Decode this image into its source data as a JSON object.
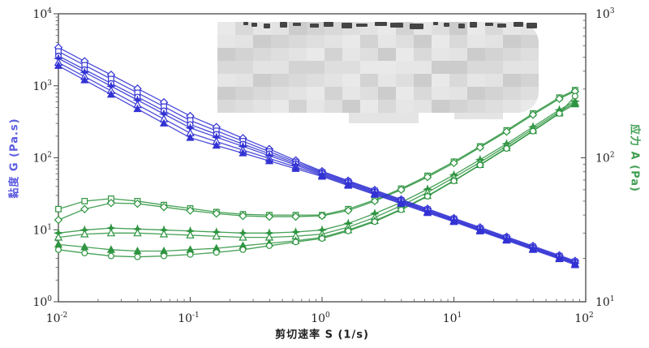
{
  "figure": {
    "x_axis": {
      "label": "剪切速率 S (1/s)",
      "scale": "log",
      "ticks": [
        "10^-2",
        "10^-1",
        "10^0",
        "10^1",
        "10^2"
      ],
      "range": [
        0.01,
        100
      ]
    },
    "left_axis": {
      "label": "黏度 G (Pa.s)",
      "scale": "log",
      "ticks": [
        "10^0",
        "10^1",
        "10^2",
        "10^3",
        "10^4"
      ],
      "range": [
        1,
        10000
      ],
      "color": "#5b5be0"
    },
    "right_axis": {
      "label": "应力 A (Pa)",
      "scale": "log",
      "ticks": [
        "10^1",
        "10^2",
        "10^3"
      ],
      "range": [
        10,
        1000
      ],
      "color": "#3f9e52"
    },
    "redaction": {
      "present": true,
      "description": "pixelated mosaic block covering the legend/title area; only illegible tops of characters remain visible above it"
    }
  },
  "chart_data": {
    "type": "line",
    "title": "",
    "xlabel": "剪切速率 S (1/s)",
    "ylabel_left": "黏度 G (Pa.s)",
    "ylabel_right": "应力 A (Pa)",
    "x_range": [
      0.01,
      100
    ],
    "left_range": [
      1,
      10000
    ],
    "right_range": [
      10,
      1000
    ],
    "grid": false,
    "colors": {
      "viscosity": "#3232d4",
      "stress": "#2e9440"
    },
    "x": [
      0.01,
      0.0158,
      0.0251,
      0.0398,
      0.0631,
      0.1,
      0.158,
      0.251,
      0.398,
      0.631,
      1,
      1.58,
      2.51,
      3.98,
      6.31,
      10,
      15.8,
      25.1,
      39.8,
      63.1,
      83
    ],
    "series": [
      {
        "name": "viscosity-diamond",
        "axis": "left",
        "marker": "diamond-open",
        "color": "#3232d4",
        "values": [
          3400,
          2190,
          1420,
          914,
          590,
          380,
          267,
          187,
          132,
          92,
          65,
          48,
          35.7,
          26.4,
          19.6,
          14.5,
          10.8,
          8.0,
          5.95,
          4.42,
          3.7
        ]
      },
      {
        "name": "viscosity-square",
        "axis": "left",
        "marker": "square-open",
        "color": "#3232d4",
        "values": [
          3000,
          1930,
          1240,
          798,
          513,
          330,
          237,
          170,
          122,
          87.7,
          63,
          46.7,
          34.7,
          25.7,
          19.1,
          14.2,
          10.5,
          7.82,
          5.8,
          4.31,
          3.6
        ]
      },
      {
        "name": "viscosity-circle",
        "axis": "left",
        "marker": "circle-open",
        "color": "#3232d4",
        "values": [
          2600,
          1680,
          1080,
          698,
          450,
          290,
          212,
          155,
          114,
          83.3,
          61,
          45.3,
          33.6,
          25,
          18.6,
          13.8,
          10.2,
          7.6,
          5.64,
          4.19,
          3.5
        ]
      },
      {
        "name": "viscosity-star",
        "axis": "left",
        "marker": "star-filled",
        "color": "#3232d4",
        "values": [
          2400,
          1540,
          987,
          633,
          406,
          260,
          193,
          144,
          107,
          79.4,
          59,
          43.9,
          32.7,
          24.4,
          18.1,
          13.5,
          10,
          7.45,
          5.54,
          4.12,
          3.45
        ]
      },
      {
        "name": "viscosity-triangle-open",
        "axis": "left",
        "marker": "triangle-open",
        "color": "#3232d4",
        "values": [
          2100,
          1340,
          852,
          543,
          346,
          220,
          168,
          128,
          97.9,
          74.7,
          57,
          42.5,
          31.7,
          23.7,
          17.7,
          13.2,
          9.8,
          7.3,
          5.42,
          4.03,
          3.35
        ]
      },
      {
        "name": "viscosity-triangle-filled",
        "axis": "left",
        "marker": "triangle-filled",
        "color": "#3232d4",
        "values": [
          1900,
          1200,
          757,
          477,
          301,
          190,
          148,
          116,
          90.3,
          70.5,
          55,
          41.1,
          30.8,
          23,
          17.2,
          12.9,
          9.56,
          7.11,
          5.28,
          3.93,
          3.25
        ]
      },
      {
        "name": "stress-square",
        "axis": "right",
        "marker": "square-open",
        "color": "#2e9440",
        "values": [
          44,
          50,
          52,
          50,
          47,
          44.5,
          42,
          40.5,
          40,
          40,
          40,
          44,
          51,
          61,
          75,
          94,
          120,
          155,
          203,
          262,
          295
        ]
      },
      {
        "name": "stress-diamond",
        "axis": "right",
        "marker": "diamond-open",
        "color": "#2e9440",
        "values": [
          37,
          44,
          48.5,
          48,
          45.5,
          43,
          41,
          39.5,
          39,
          39,
          39.5,
          43,
          50,
          60,
          73.5,
          92,
          118,
          152,
          199,
          257,
          290
        ]
      },
      {
        "name": "stress-star",
        "axis": "right",
        "marker": "star-filled",
        "color": "#2e9440",
        "values": [
          30,
          31.5,
          32.5,
          32,
          31.5,
          31,
          30.5,
          30,
          30,
          30.5,
          31.5,
          35,
          41,
          49,
          60.5,
          76,
          97,
          125,
          164,
          215,
          247
        ]
      },
      {
        "name": "stress-triangle-open",
        "axis": "right",
        "marker": "triangle-open",
        "color": "#2e9440",
        "values": [
          28,
          29.5,
          30,
          30,
          29.5,
          29,
          28.5,
          28,
          28,
          28.5,
          29.5,
          33,
          38.5,
          46.5,
          57.5,
          73,
          93,
          121,
          159,
          209,
          241
        ]
      },
      {
        "name": "stress-triangle-filled",
        "axis": "right",
        "marker": "triangle-filled",
        "color": "#2e9440",
        "values": [
          25,
          24,
          23,
          22.5,
          22.5,
          23,
          23.5,
          24.5,
          25.5,
          26.5,
          28,
          31.5,
          36.5,
          44,
          54.5,
          69.5,
          89.5,
          117,
          154,
          204,
          236
        ]
      },
      {
        "name": "stress-circle",
        "axis": "right",
        "marker": "circle-open",
        "color": "#2e9440",
        "values": [
          23,
          21.8,
          20.8,
          20.5,
          20.8,
          21.3,
          22,
          23,
          24.5,
          26,
          27.5,
          31,
          36,
          43.5,
          54,
          69,
          89,
          116,
          153,
          203,
          268
        ]
      }
    ]
  }
}
